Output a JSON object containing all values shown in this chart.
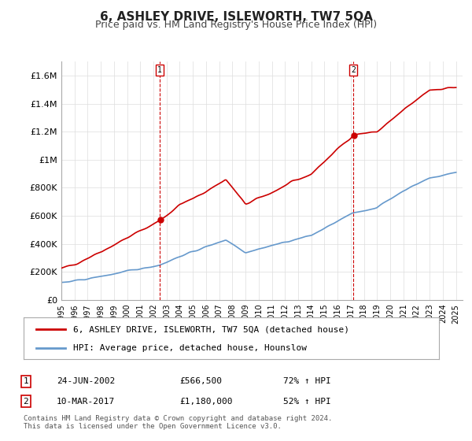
{
  "title": "6, ASHLEY DRIVE, ISLEWORTH, TW7 5QA",
  "subtitle": "Price paid vs. HM Land Registry's House Price Index (HPI)",
  "ylabel_ticks": [
    "£0",
    "£200K",
    "£400K",
    "£600K",
    "£800K",
    "£1M",
    "£1.2M",
    "£1.4M",
    "£1.6M"
  ],
  "ytick_values": [
    0,
    200000,
    400000,
    600000,
    800000,
    1000000,
    1200000,
    1400000,
    1600000
  ],
  "ylim": [
    0,
    1700000
  ],
  "xlim_start": 1995.0,
  "xlim_end": 2025.5,
  "red_line_color": "#cc0000",
  "blue_line_color": "#6699cc",
  "marker1_date": 2002.48,
  "marker1_value": 566500,
  "marker1_label": "1",
  "marker2_date": 2017.19,
  "marker2_value": 1180000,
  "marker2_label": "2",
  "legend_line1": "6, ASHLEY DRIVE, ISLEWORTH, TW7 5QA (detached house)",
  "legend_line2": "HPI: Average price, detached house, Hounslow",
  "table_row1": [
    "1",
    "24-JUN-2002",
    "£566,500",
    "72% ↑ HPI"
  ],
  "table_row2": [
    "2",
    "10-MAR-2017",
    "£1,180,000",
    "52% ↑ HPI"
  ],
  "footer": "Contains HM Land Registry data © Crown copyright and database right 2024.\nThis data is licensed under the Open Government Licence v3.0.",
  "background_color": "#ffffff",
  "plot_bg_color": "#ffffff",
  "grid_color": "#dddddd",
  "title_fontsize": 11,
  "subtitle_fontsize": 9
}
